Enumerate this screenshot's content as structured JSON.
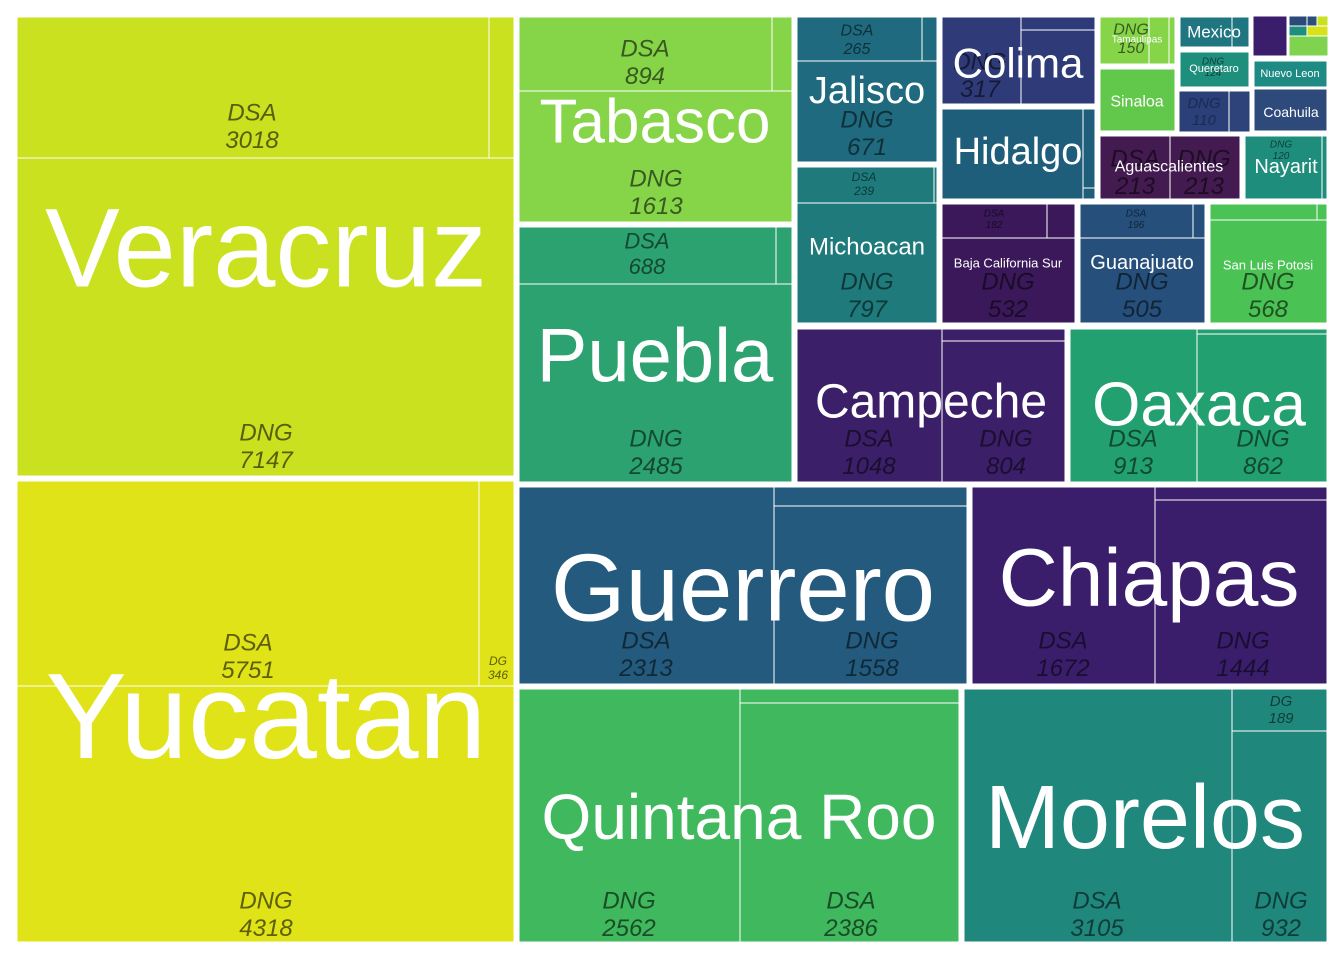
{
  "chart_data": {
    "type": "treemap",
    "title": "",
    "value_unit": "cases",
    "groups": [
      {
        "state": "Veracruz",
        "color": "#cae11f",
        "children": [
          {
            "label": "DNG",
            "value": 7147
          },
          {
            "label": "DSA",
            "value": 3018
          },
          {
            "label": "",
            "value": 168
          }
        ]
      },
      {
        "state": "Yucatan",
        "color": "#dfe318",
        "children": [
          {
            "label": "DSA",
            "value": 5751
          },
          {
            "label": "DNG",
            "value": 4318
          },
          {
            "label": "DG",
            "value": 346
          }
        ]
      },
      {
        "state": "Tabasco",
        "color": "#86d549",
        "children": [
          {
            "label": "DNG",
            "value": 1613
          },
          {
            "label": "DSA",
            "value": 894
          },
          {
            "label": "",
            "value": 45
          }
        ]
      },
      {
        "state": "Puebla",
        "color": "#2ba26f",
        "children": [
          {
            "label": "DNG",
            "value": 2485
          },
          {
            "label": "DSA",
            "value": 688
          },
          {
            "label": "",
            "value": 57
          }
        ]
      },
      {
        "state": "Guerrero",
        "color": "#245a7d",
        "children": [
          {
            "label": "DSA",
            "value": 2313
          },
          {
            "label": "DNG",
            "value": 1558
          },
          {
            "label": "",
            "value": 90
          }
        ]
      },
      {
        "state": "Chiapas",
        "color": "#3a1e6b",
        "children": [
          {
            "label": "DSA",
            "value": 1672
          },
          {
            "label": "DNG",
            "value": 1444
          },
          {
            "label": "",
            "value": 36
          }
        ]
      },
      {
        "state": "Quintana Roo",
        "color": "#3fb85e",
        "children": [
          {
            "label": "DNG",
            "value": 2562
          },
          {
            "label": "DSA",
            "value": 2386
          },
          {
            "label": "",
            "value": 80
          }
        ]
      },
      {
        "state": "Morelos",
        "color": "#20877c",
        "children": [
          {
            "label": "DSA",
            "value": 3105
          },
          {
            "label": "DNG",
            "value": 932
          },
          {
            "label": "DG",
            "value": 189
          }
        ]
      },
      {
        "state": "Jalisco",
        "color": "#1f6a7e",
        "children": [
          {
            "label": "DNG",
            "value": 671
          },
          {
            "label": "DSA",
            "value": 265
          },
          {
            "label": "",
            "value": 30
          }
        ]
      },
      {
        "state": "Colima",
        "color": "#2f3a79",
        "children": [
          {
            "label": "DNG",
            "value": 317
          },
          {
            "label": "",
            "value": 316
          },
          {
            "label": "",
            "value": 10
          }
        ]
      },
      {
        "state": "Hidalgo",
        "color": "#1f5e7b",
        "children": [
          {
            "label": "",
            "value": 605
          },
          {
            "label": "",
            "value": 20
          },
          {
            "label": "",
            "value": 8
          }
        ]
      },
      {
        "state": "Michoacan",
        "color": "#1f7a7c",
        "children": [
          {
            "label": "DNG",
            "value": 797
          },
          {
            "label": "DSA",
            "value": 239
          },
          {
            "label": "",
            "value": 15
          }
        ]
      },
      {
        "state": "Campeche",
        "color": "#3b1f68",
        "children": [
          {
            "label": "DSA",
            "value": 1048
          },
          {
            "label": "DNG",
            "value": 804
          },
          {
            "label": "",
            "value": 20
          }
        ]
      },
      {
        "state": "Oaxaca",
        "color": "#23a06f",
        "children": [
          {
            "label": "DSA",
            "value": 913
          },
          {
            "label": "DNG",
            "value": 862
          },
          {
            "label": "",
            "value": 8
          }
        ]
      },
      {
        "state": "Baja California Sur",
        "color": "#3a1859",
        "children": [
          {
            "label": "DNG",
            "value": 532
          },
          {
            "label": "DSA",
            "value": 182
          },
          {
            "label": "",
            "value": 20
          }
        ]
      },
      {
        "state": "Guanajuato",
        "color": "#26507b",
        "children": [
          {
            "label": "DNG",
            "value": 505
          },
          {
            "label": "DSA",
            "value": 196
          },
          {
            "label": "",
            "value": 10
          }
        ]
      },
      {
        "state": "San  Luis Potosi",
        "color": "#4ac254",
        "children": [
          {
            "label": "DNG",
            "value": 568
          },
          {
            "label": "",
            "value": 80
          },
          {
            "label": "",
            "value": 10
          }
        ]
      },
      {
        "state": "Tamaulipas",
        "color": "#86d549",
        "children": [
          {
            "label": "DNG",
            "value": 150
          },
          {
            "label": "",
            "value": 30
          },
          {
            "label": "",
            "value": 10
          }
        ]
      },
      {
        "state": "Sinaloa",
        "color": "#62c84c",
        "children": [
          {
            "label": "",
            "value": 170
          }
        ]
      },
      {
        "state": "Mexico",
        "color": "#1f7580",
        "children": [
          {
            "label": "",
            "value": 90
          },
          {
            "label": "",
            "value": 30
          }
        ]
      },
      {
        "state": "Queretaro",
        "color": "#1f8f7d",
        "children": [
          {
            "label": "DNG",
            "value": 124
          }
        ]
      },
      {
        "state": "Nuevo Leon",
        "color": "#1e8a84",
        "children": [
          {
            "label": "",
            "value": 90
          }
        ]
      },
      {
        "state": "Coahuila",
        "color": "#2e4a7a",
        "children": [
          {
            "label": "",
            "value": 110
          }
        ]
      },
      {
        "state": "Aguascalientes",
        "color": "#431b50",
        "children": [
          {
            "label": "DSA",
            "value": 213
          },
          {
            "label": "DNG",
            "value": 213
          }
        ]
      },
      {
        "state": "Nayarit",
        "color": "#1f8d7c",
        "children": [
          {
            "label": "DNG",
            "value": 120
          },
          {
            "label": "",
            "value": 20
          }
        ]
      }
    ],
    "small_labels": {
      "dng110": "DNG\n110"
    }
  }
}
